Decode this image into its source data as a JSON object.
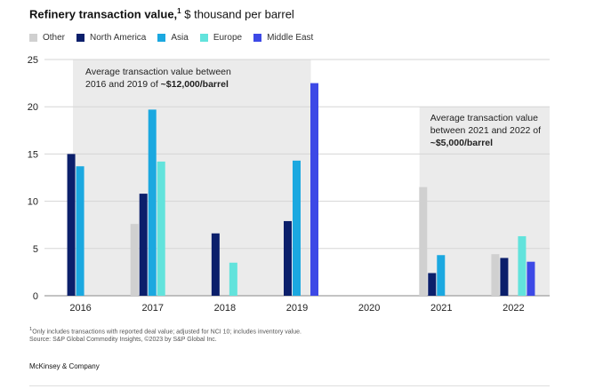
{
  "title_bold": "Refinery transaction value,",
  "title_sup": "1",
  "title_unit": " $ thousand per barrel",
  "footnote_line1": "Only includes transactions with reported deal value; adjusted for NCI 10; includes inventory value.",
  "footnote_marker": "1",
  "footnote_line2": "Source: S&P Global Commodity Insights, ©2023 by S&P Global Inc.",
  "brand": "McKinsey & Company",
  "chart_data": {
    "type": "bar",
    "categories": [
      "2016",
      "2017",
      "2018",
      "2019",
      "2020",
      "2021",
      "2022"
    ],
    "ylim": [
      0,
      25
    ],
    "yticks": [
      0,
      5,
      10,
      15,
      20,
      25
    ],
    "grid": true,
    "legend_position": "top-left",
    "series": [
      {
        "name": "Other",
        "color": "#d0d0d0",
        "values": [
          null,
          7.6,
          null,
          null,
          null,
          11.5,
          4.4
        ]
      },
      {
        "name": "North America",
        "color": "#0b1f6b",
        "values": [
          15.0,
          10.8,
          6.6,
          7.9,
          null,
          2.4,
          4.0
        ]
      },
      {
        "name": "Asia",
        "color": "#1ba8e0",
        "values": [
          13.7,
          19.7,
          null,
          14.3,
          null,
          4.3,
          null
        ]
      },
      {
        "name": "Europe",
        "color": "#62e3dc",
        "values": [
          null,
          14.2,
          3.5,
          null,
          null,
          null,
          6.3
        ]
      },
      {
        "name": "Middle East",
        "color": "#3d49e6",
        "values": [
          null,
          null,
          null,
          22.5,
          null,
          null,
          3.6
        ]
      }
    ],
    "shaded_regions": [
      {
        "from": "2016",
        "to": "2019",
        "color": "#ebebeb",
        "annotation_line1": "Average transaction value between",
        "annotation_line2_regular": "2016 and 2019 of ",
        "annotation_line2_bold": "~$12,000/barrel"
      },
      {
        "from": "2021",
        "to": "2022",
        "color": "#ebebeb",
        "annotation_line1": "Average transaction value",
        "annotation_line2": "between 2021 and 2022 of",
        "annotation_line3_bold": "~$5,000/barrel"
      }
    ]
  }
}
